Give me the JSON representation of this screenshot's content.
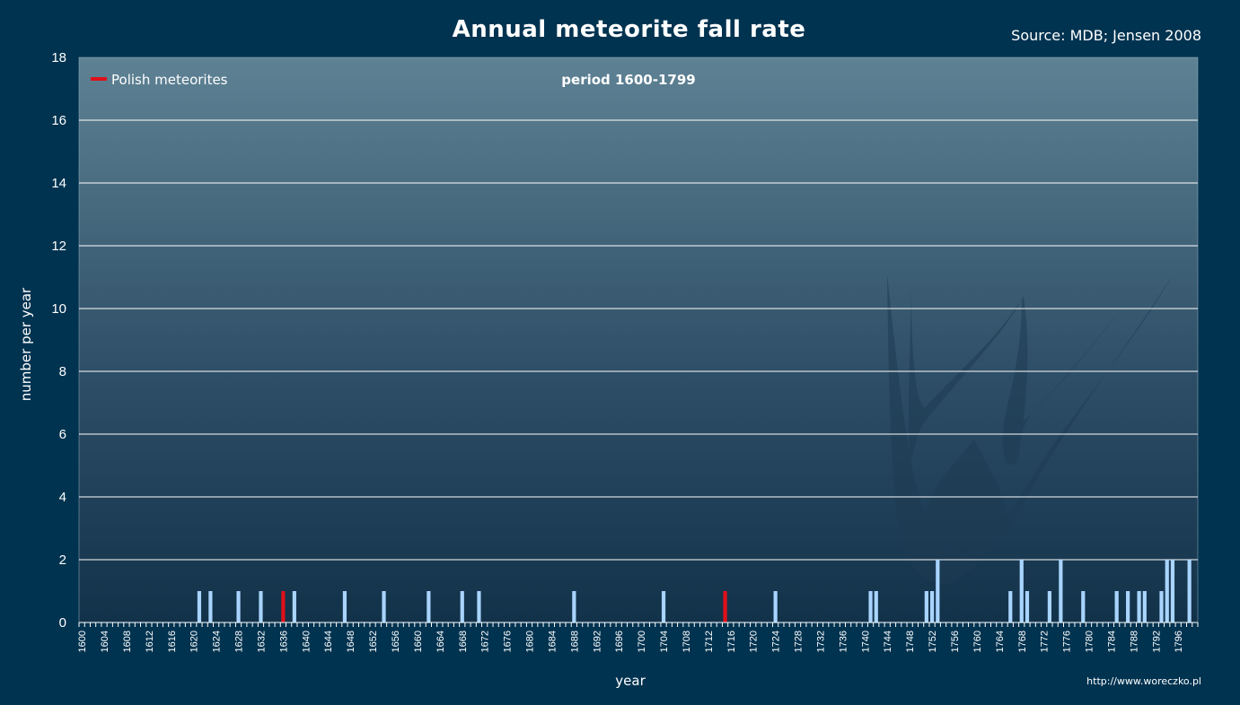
{
  "header": {
    "title": "Annual meteorite fall rate",
    "source": "Source: MDB; Jensen 2008"
  },
  "footer": {
    "url": "http://www.woreczko.pl"
  },
  "colors": {
    "background": "#003350",
    "bar_default": "#a8d4ff",
    "bar_polish": "#e0101a",
    "grid": "#ffffff",
    "plot_top": "#5e8294",
    "plot_bottom": "#12324a"
  },
  "chart_data": {
    "type": "bar",
    "title": "Annual meteorite fall rate",
    "subtitle": "period 1600-1799",
    "xlabel": "year",
    "ylabel": "number per year",
    "xlim": [
      1600,
      1799
    ],
    "ylim": [
      0,
      18
    ],
    "yticks": [
      0,
      2,
      4,
      6,
      8,
      10,
      12,
      14,
      16,
      18
    ],
    "x_tick_step": 4,
    "grid": "horizontal",
    "legend": {
      "placement": "top-left",
      "entries": [
        "Polish meteorites"
      ]
    },
    "series": [
      {
        "name": "",
        "color": "#a8d4ff",
        "points": [
          [
            1621,
            1
          ],
          [
            1623,
            1
          ],
          [
            1628,
            1
          ],
          [
            1632,
            1
          ],
          [
            1638,
            1
          ],
          [
            1647,
            1
          ],
          [
            1654,
            1
          ],
          [
            1662,
            1
          ],
          [
            1668,
            1
          ],
          [
            1671,
            1
          ],
          [
            1688,
            1
          ],
          [
            1704,
            1
          ],
          [
            1724,
            1
          ],
          [
            1741,
            1
          ],
          [
            1742,
            1
          ],
          [
            1751,
            1
          ],
          [
            1752,
            1
          ],
          [
            1753,
            2
          ],
          [
            1766,
            1
          ],
          [
            1768,
            2
          ],
          [
            1769,
            1
          ],
          [
            1773,
            1
          ],
          [
            1775,
            2
          ],
          [
            1779,
            1
          ],
          [
            1785,
            1
          ],
          [
            1787,
            1
          ],
          [
            1789,
            1
          ],
          [
            1790,
            1
          ],
          [
            1793,
            1
          ],
          [
            1794,
            2
          ],
          [
            1795,
            2
          ],
          [
            1798,
            2
          ]
        ]
      },
      {
        "name": "Polish meteorites",
        "color": "#e0101a",
        "points": [
          [
            1636,
            1
          ],
          [
            1715,
            1
          ]
        ]
      }
    ]
  }
}
